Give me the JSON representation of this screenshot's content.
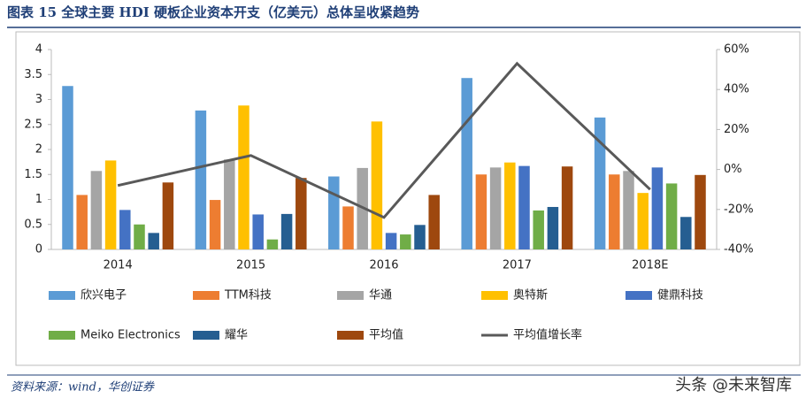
{
  "chart_data": {
    "type": "bar",
    "title": "图表 15  全球主要 HDI 硬板企业资本开支（亿美元）总体呈收紧趋势",
    "source": "资料来源：wind，华创证券",
    "watermark": "头条 @未来智库",
    "categories": [
      "2014",
      "2015",
      "2016",
      "2017",
      "2018E"
    ],
    "series": [
      {
        "name": "欣兴电子",
        "color": "#5b9bd5",
        "values": [
          3.27,
          2.78,
          1.46,
          3.43,
          2.64
        ]
      },
      {
        "name": "TTM科技",
        "color": "#ed7d31",
        "values": [
          1.09,
          0.99,
          0.86,
          1.5,
          1.5
        ]
      },
      {
        "name": "华通",
        "color": "#a5a5a5",
        "values": [
          1.57,
          1.8,
          1.63,
          1.64,
          1.57
        ]
      },
      {
        "name": "奥特斯",
        "color": "#ffc000",
        "values": [
          1.78,
          2.88,
          2.56,
          1.74,
          1.13
        ]
      },
      {
        "name": "健鼎科技",
        "color": "#4472c4",
        "values": [
          0.79,
          0.7,
          0.33,
          1.67,
          1.64
        ]
      },
      {
        "name": "Meiko Electronics",
        "color": "#70ad47",
        "values": [
          0.5,
          0.2,
          0.3,
          0.78,
          1.32
        ]
      },
      {
        "name": "耀华",
        "color": "#255e91",
        "values": [
          0.33,
          0.71,
          0.49,
          0.85,
          0.65
        ]
      },
      {
        "name": "平均值",
        "color": "#9e480e",
        "values": [
          1.34,
          1.43,
          1.09,
          1.66,
          1.49
        ]
      },
      {
        "name": "平均值增长率",
        "color": "#595959",
        "type": "line",
        "axis": "y2",
        "values": [
          -8,
          7,
          -24,
          53,
          -10
        ]
      }
    ],
    "ylim": [
      0,
      4
    ],
    "yticks": [
      0,
      0.5,
      1,
      1.5,
      2,
      2.5,
      3,
      3.5,
      4
    ],
    "y2lim": [
      -40,
      60
    ],
    "y2ticks": [
      {
        "value": -40,
        "label": "-40%"
      },
      {
        "value": -20,
        "label": "-20%"
      },
      {
        "value": 0,
        "label": "0%"
      },
      {
        "value": 20,
        "label": "20%"
      },
      {
        "value": 40,
        "label": "40%"
      },
      {
        "value": 60,
        "label": "60%"
      }
    ]
  }
}
